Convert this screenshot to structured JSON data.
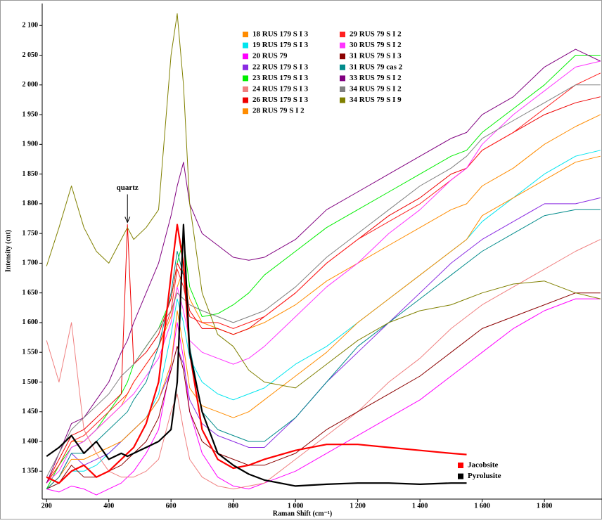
{
  "chart_data": {
    "type": "line",
    "x_label": "Raman Shift (cm⁻¹)",
    "y_label": "Intensity (cnt)",
    "xlim": [
      186,
      1985
    ],
    "ylim": [
      1303,
      2137
    ],
    "xticks": [
      200,
      400,
      600,
      800,
      {
        "value": 1000,
        "label": "1 000"
      },
      {
        "value": 1200,
        "label": "1 200"
      },
      {
        "value": 1400,
        "label": "1 400"
      },
      {
        "value": 1600,
        "label": "1 600"
      },
      {
        "value": 1800,
        "label": "1 800"
      }
    ],
    "yticks": [
      {
        "value": 1350,
        "label": "1 350"
      },
      {
        "value": 1400,
        "label": "1 400"
      },
      {
        "value": 1450,
        "label": "1 450"
      },
      {
        "value": 1500,
        "label": "1 500"
      },
      {
        "value": 1550,
        "label": "1 550"
      },
      {
        "value": 1600,
        "label": "1 600"
      },
      {
        "value": 1650,
        "label": "1 650"
      },
      {
        "value": 1700,
        "label": "1 700"
      },
      {
        "value": 1750,
        "label": "1 750"
      },
      {
        "value": 1800,
        "label": "1 800"
      },
      {
        "value": 1850,
        "label": "1 850"
      },
      {
        "value": 1900,
        "label": "1 900"
      },
      {
        "value": 1950,
        "label": "1 950"
      },
      {
        "value": 2000,
        "label": "2 000"
      },
      {
        "value": 2050,
        "label": "2 050"
      },
      {
        "value": 2100,
        "label": "2 100"
      }
    ],
    "x": [
      200,
      240,
      280,
      320,
      360,
      400,
      440,
      460,
      480,
      520,
      560,
      600,
      620,
      640,
      660,
      700,
      750,
      800,
      850,
      900,
      1000,
      1100,
      1200,
      1300,
      1400,
      1500,
      1550,
      1600,
      1700,
      1800,
      1900,
      1980
    ],
    "series": [
      {
        "name": "18 RUS 179 S I 3",
        "color": "#ff8c00",
        "values": [
          1330,
          1360,
          1400,
          1400,
          1420,
          1440,
          1460,
          1480,
          1500,
          1530,
          1560,
          1610,
          1660,
          1690,
          1640,
          1600,
          1590,
          1580,
          1590,
          1600,
          1630,
          1670,
          1700,
          1730,
          1760,
          1790,
          1800,
          1830,
          1860,
          1900,
          1930,
          1950
        ]
      },
      {
        "name": "19 RUS 179 S I 3",
        "color": "#00e5ee",
        "values": [
          1320,
          1330,
          1350,
          1350,
          1360,
          1380,
          1400,
          1410,
          1420,
          1440,
          1480,
          1580,
          1640,
          1600,
          1540,
          1500,
          1480,
          1470,
          1480,
          1490,
          1530,
          1560,
          1600,
          1640,
          1680,
          1720,
          1740,
          1770,
          1810,
          1850,
          1880,
          1890
        ]
      },
      {
        "name": "20 RUS 79",
        "color": "#ff00ff",
        "values": [
          1320,
          1315,
          1325,
          1320,
          1310,
          1320,
          1330,
          1340,
          1350,
          1380,
          1420,
          1530,
          1600,
          1540,
          1450,
          1380,
          1340,
          1325,
          1320,
          1330,
          1350,
          1380,
          1410,
          1440,
          1470,
          1510,
          1530,
          1550,
          1590,
          1620,
          1640,
          1640
        ]
      },
      {
        "name": "22 RUS 179 S I 3",
        "color": "#8a2be2",
        "values": [
          1320,
          1340,
          1380,
          1360,
          1370,
          1380,
          1400,
          1410,
          1420,
          1440,
          1470,
          1520,
          1560,
          1530,
          1470,
          1430,
          1410,
          1400,
          1390,
          1390,
          1440,
          1500,
          1550,
          1600,
          1650,
          1700,
          1720,
          1740,
          1770,
          1800,
          1800,
          1810
        ]
      },
      {
        "name": "23 RUS 179 S I 3",
        "color": "#00ee00",
        "values": [
          1320,
          1360,
          1390,
          1400,
          1420,
          1450,
          1480,
          1500,
          1530,
          1560,
          1590,
          1640,
          1700,
          1740,
          1660,
          1610,
          1615,
          1630,
          1650,
          1680,
          1720,
          1760,
          1790,
          1820,
          1850,
          1880,
          1890,
          1920,
          1960,
          2000,
          2050,
          2050
        ]
      },
      {
        "name": "24 RUS 179 S I 3",
        "color": "#f08080",
        "values": [
          1570,
          1500,
          1600,
          1420,
          1380,
          1350,
          1340,
          1340,
          1340,
          1350,
          1370,
          1450,
          1480,
          1420,
          1370,
          1340,
          1325,
          1320,
          1325,
          1330,
          1370,
          1410,
          1450,
          1500,
          1540,
          1590,
          1610,
          1630,
          1660,
          1690,
          1720,
          1740
        ]
      },
      {
        "name": "26 RUS 179 S I 3",
        "color": "#ee0000",
        "values": [
          1330,
          1370,
          1410,
          1420,
          1440,
          1460,
          1480,
          1765,
          1530,
          1550,
          1580,
          1640,
          1700,
          1680,
          1620,
          1590,
          1590,
          1580,
          1590,
          1610,
          1650,
          1700,
          1740,
          1780,
          1810,
          1850,
          1860,
          1890,
          1920,
          1950,
          1970,
          1980
        ]
      },
      {
        "name": "28 RUS 79 S I 2",
        "color": "#ff8c00",
        "values": [
          1320,
          1340,
          1370,
          1370,
          1380,
          1390,
          1400,
          1410,
          1420,
          1440,
          1470,
          1530,
          1620,
          1560,
          1490,
          1460,
          1450,
          1440,
          1450,
          1470,
          1510,
          1550,
          1600,
          1640,
          1680,
          1720,
          1740,
          1780,
          1810,
          1840,
          1870,
          1880
        ]
      },
      {
        "name": "29 RUS 79 S I 2",
        "color": "#ff2020",
        "values": [
          1330,
          1360,
          1400,
          1410,
          1430,
          1450,
          1470,
          1480,
          1500,
          1530,
          1560,
          1620,
          1690,
          1660,
          1610,
          1600,
          1600,
          1590,
          1600,
          1610,
          1650,
          1700,
          1740,
          1770,
          1800,
          1840,
          1860,
          1890,
          1920,
          1960,
          2000,
          2020
        ]
      },
      {
        "name": "30 RUS 79 S I 2",
        "color": "#ff33ff",
        "values": [
          1330,
          1350,
          1390,
          1400,
          1420,
          1440,
          1460,
          1470,
          1480,
          1510,
          1540,
          1600,
          1660,
          1620,
          1570,
          1550,
          1540,
          1530,
          1540,
          1560,
          1610,
          1660,
          1700,
          1750,
          1790,
          1840,
          1860,
          1900,
          1950,
          1990,
          2030,
          2040
        ]
      },
      {
        "name": "31 RUS 79 S I 3",
        "color": "#8b0000",
        "values": [
          1320,
          1330,
          1360,
          1340,
          1340,
          1350,
          1360,
          1370,
          1380,
          1400,
          1440,
          1520,
          1560,
          1520,
          1450,
          1400,
          1380,
          1370,
          1360,
          1360,
          1380,
          1420,
          1450,
          1480,
          1510,
          1550,
          1570,
          1590,
          1610,
          1630,
          1650,
          1650
        ]
      },
      {
        "name": "31 RUS 79 cas 2",
        "color": "#008b8b",
        "values": [
          1320,
          1340,
          1380,
          1380,
          1400,
          1420,
          1440,
          1450,
          1470,
          1500,
          1560,
          1650,
          1720,
          1680,
          1560,
          1450,
          1420,
          1410,
          1400,
          1400,
          1440,
          1500,
          1560,
          1600,
          1640,
          1680,
          1700,
          1720,
          1750,
          1780,
          1790,
          1790
        ]
      },
      {
        "name": "33 RUS 79 S I 2",
        "color": "#800080",
        "values": [
          1330,
          1380,
          1430,
          1440,
          1470,
          1500,
          1550,
          1570,
          1600,
          1650,
          1700,
          1780,
          1830,
          1870,
          1800,
          1750,
          1730,
          1710,
          1705,
          1710,
          1740,
          1790,
          1820,
          1850,
          1880,
          1910,
          1920,
          1950,
          1980,
          2030,
          2060,
          2040
        ]
      },
      {
        "name": "34 RUS 79 S I 2",
        "color": "#808080",
        "values": [
          1340,
          1380,
          1420,
          1440,
          1460,
          1480,
          1510,
          1520,
          1530,
          1560,
          1590,
          1620,
          1650,
          1640,
          1630,
          1620,
          1610,
          1600,
          1610,
          1620,
          1660,
          1710,
          1750,
          1790,
          1830,
          1860,
          1880,
          1910,
          1940,
          1970,
          2000,
          2000
        ]
      },
      {
        "name": "34 RUS 79 S I 9",
        "color": "#808000",
        "values": [
          1695,
          1760,
          1830,
          1760,
          1720,
          1700,
          1740,
          1760,
          1740,
          1760,
          1790,
          2050,
          2120,
          2000,
          1800,
          1650,
          1580,
          1560,
          1520,
          1500,
          1490,
          1530,
          1570,
          1600,
          1620,
          1630,
          1640,
          1650,
          1665,
          1670,
          1650,
          1640
        ]
      }
    ],
    "reference_series": [
      {
        "name": "Jacobsite",
        "color": "#ff0000",
        "values": [
          1340,
          1330,
          1350,
          1360,
          1340,
          1350,
          1370,
          1380,
          1390,
          1430,
          1500,
          1680,
          1765,
          1700,
          1550,
          1420,
          1370,
          1355,
          1360,
          1370,
          1385,
          1395,
          1395,
          1390,
          1385,
          1380,
          1378,
          null,
          null,
          null,
          null,
          null
        ]
      },
      {
        "name": "Pyrolusite",
        "color": "#000000",
        "values": [
          1375,
          1390,
          1410,
          1380,
          1400,
          1370,
          1380,
          1375,
          1380,
          1390,
          1400,
          1420,
          1500,
          1765,
          1550,
          1450,
          1380,
          1360,
          1345,
          1335,
          1325,
          1328,
          1330,
          1330,
          1328,
          1330,
          1330,
          null,
          null,
          null,
          null,
          null
        ]
      }
    ],
    "annotations": [
      {
        "text": "quartz",
        "x": 460,
        "y": 1765
      }
    ]
  }
}
